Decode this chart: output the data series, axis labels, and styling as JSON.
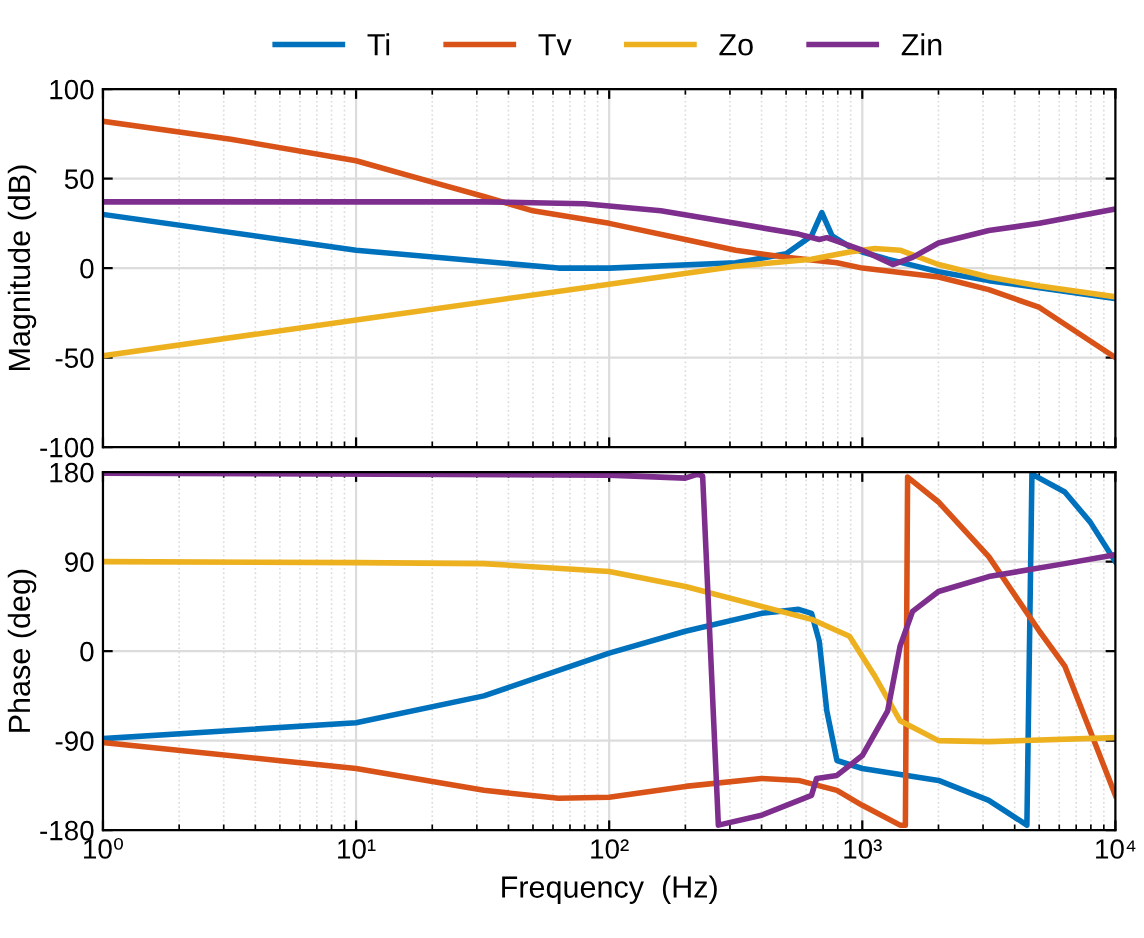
{
  "chart_data": [
    {
      "type": "line",
      "ylabel": "Magnitude (dB)",
      "xlim": [
        1,
        10000
      ],
      "ylim": [
        -100,
        100
      ],
      "yticks": [
        -100,
        -50,
        0,
        50,
        100
      ],
      "log": "x",
      "grid": true,
      "legend": "top",
      "tick_labels": "y",
      "xticks": [
        {
          "value": 1,
          "label": null
        },
        {
          "value": 10,
          "label": null
        },
        {
          "value": 100,
          "label": null
        },
        {
          "value": 1000,
          "label": null
        },
        {
          "value": 10000,
          "label": null
        }
      ],
      "series": [
        {
          "name": "Ti",
          "color": "#0072bd",
          "x": [
            1,
            10,
            63,
            100,
            316,
            500,
            630,
            692,
            760,
            890,
            1000,
            1260,
            2000,
            3160,
            5010,
            10000
          ],
          "values": [
            30,
            10,
            0,
            0,
            3,
            8,
            18,
            31,
            18,
            12,
            9,
            5,
            -2,
            -7,
            -11,
            -17
          ]
        },
        {
          "name": "Tv",
          "color": "#d95319",
          "x": [
            1,
            3.2,
            10,
            20,
            32,
            50,
            100,
            200,
            316,
            500,
            794,
            1000,
            2000,
            3160,
            5010,
            10000
          ],
          "values": [
            82,
            72,
            60,
            48,
            40,
            32,
            25,
            16,
            10,
            6,
            3,
            0,
            -5,
            -12,
            -22,
            -50
          ]
        },
        {
          "name": "Zo",
          "color": "#edb120",
          "x": [
            1,
            10,
            100,
            316,
            630,
            890,
            1120,
            1410,
            2000,
            3160,
            5010,
            10000
          ],
          "values": [
            -49,
            -29,
            -9,
            1,
            5,
            9,
            11,
            10,
            2,
            -5,
            -10,
            -16
          ]
        },
        {
          "name": "Zin",
          "color": "#7e2f8e",
          "x": [
            1,
            32,
            80,
            160,
            316,
            560,
            676,
            724,
            1000,
            1320,
            1580,
            2000,
            3160,
            5010,
            10000
          ],
          "values": [
            37,
            37,
            36,
            32,
            25,
            19,
            16,
            17,
            10,
            2,
            6,
            14,
            21,
            25,
            33
          ]
        }
      ]
    },
    {
      "type": "line",
      "xlabel": "Frequency  (Hz)",
      "ylabel": "Phase (deg)",
      "xlim": [
        1,
        10000
      ],
      "ylim": [
        -180,
        180
      ],
      "yticks": [
        -180,
        -90,
        0,
        90,
        180
      ],
      "log": "x",
      "grid": true,
      "xticks": [
        {
          "value": 1,
          "label": "10⁰"
        },
        {
          "value": 10,
          "label": "10¹"
        },
        {
          "value": 100,
          "label": "10²"
        },
        {
          "value": 1000,
          "label": "10³"
        },
        {
          "value": 10000,
          "label": "10⁴"
        }
      ],
      "series": [
        {
          "color": "#0072bd",
          "x": [
            1,
            10,
            32,
            100,
            200,
            400,
            560,
            630,
            676,
            724,
            794,
            1000,
            2000,
            3160,
            4470,
            4680,
            6310,
            7940,
            10000
          ],
          "values": [
            -88,
            -72,
            -45,
            -2,
            20,
            38,
            42,
            38,
            10,
            -60,
            -110,
            -118,
            -130,
            -150,
            -175,
            178,
            160,
            130,
            90
          ]
        },
        {
          "color": "#d95319",
          "x": [
            1,
            10,
            32,
            63,
            100,
            200,
            400,
            560,
            794,
            1000,
            1410,
            1480,
            1510,
            2000,
            3160,
            5010,
            6310,
            10000
          ],
          "values": [
            -92,
            -118,
            -140,
            -148,
            -147,
            -136,
            -128,
            -130,
            -140,
            -155,
            -175,
            -175,
            175,
            150,
            95,
            20,
            -15,
            -145
          ]
        },
        {
          "color": "#edb120",
          "x": [
            1,
            10,
            32,
            100,
            200,
            400,
            630,
            890,
            1120,
            1410,
            2000,
            3160,
            10000
          ],
          "values": [
            90,
            89,
            88,
            80,
            65,
            45,
            32,
            15,
            -25,
            -70,
            -90,
            -91,
            -87
          ]
        },
        {
          "color": "#7e2f8e",
          "x": [
            1,
            100,
            200,
            224,
            234,
            270,
            400,
            630,
            660,
            794,
            1000,
            1260,
            1410,
            1580,
            2000,
            3160,
            6310,
            10000
          ],
          "values": [
            179,
            177,
            174,
            178,
            176,
            -175,
            -165,
            -145,
            -128,
            -125,
            -105,
            -60,
            5,
            40,
            60,
            75,
            88,
            97
          ]
        }
      ]
    }
  ]
}
